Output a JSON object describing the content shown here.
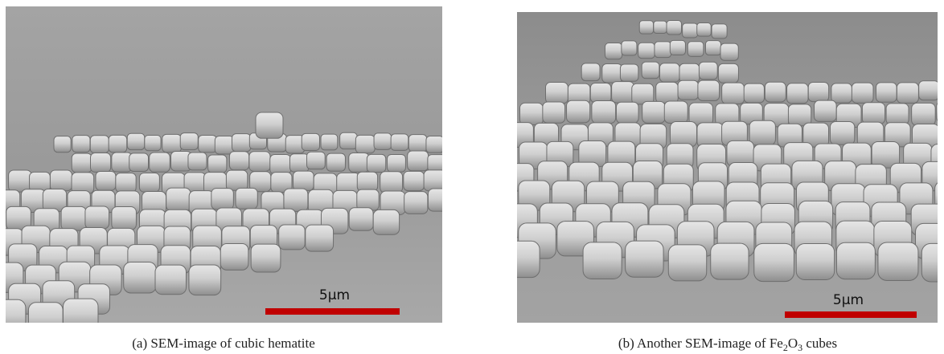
{
  "figure": {
    "panels": [
      {
        "scale_bar": "5µm",
        "caption": [
          "(a) SEM-image of cubic hematite"
        ]
      },
      {
        "scale_bar": "5µm",
        "caption": [
          "(b) Another SEM-image of Fe",
          "2",
          "O",
          "3",
          " cubes"
        ]
      }
    ]
  }
}
